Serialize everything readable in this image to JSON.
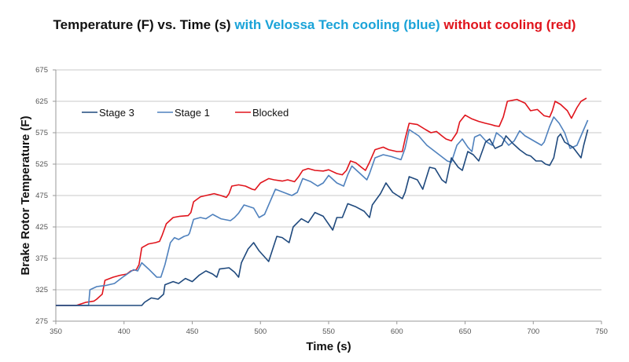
{
  "chart_data": {
    "type": "line",
    "title_parts": [
      {
        "text": "Temperature (F)  vs. Time (s) ",
        "color": "#111111"
      },
      {
        "text": "with Velossa Tech cooling (blue) ",
        "color": "#1aa3d8"
      },
      {
        "text": "without cooling (red)",
        "color": "#e0141c"
      }
    ],
    "xlabel": "Time (s)",
    "ylabel": "Brake Rotor Temperature (F)",
    "xlim": [
      350,
      750
    ],
    "ylim": [
      275,
      675
    ],
    "xticks": [
      350,
      400,
      450,
      500,
      550,
      600,
      650,
      700,
      750
    ],
    "yticks": [
      275,
      325,
      375,
      425,
      475,
      525,
      575,
      625,
      675
    ],
    "grid": "horizontal",
    "legend_position": "top-left",
    "series": [
      {
        "name": "Stage 3",
        "color": "#1f497d",
        "points": [
          [
            350,
            300
          ],
          [
            413,
            300
          ],
          [
            415,
            305
          ],
          [
            420,
            312
          ],
          [
            425,
            310
          ],
          [
            429,
            318
          ],
          [
            430,
            333
          ],
          [
            436,
            338
          ],
          [
            440,
            335
          ],
          [
            445,
            343
          ],
          [
            450,
            338
          ],
          [
            455,
            348
          ],
          [
            460,
            355
          ],
          [
            465,
            350
          ],
          [
            468,
            345
          ],
          [
            470,
            358
          ],
          [
            477,
            360
          ],
          [
            481,
            353
          ],
          [
            484,
            345
          ],
          [
            486,
            368
          ],
          [
            491,
            390
          ],
          [
            495,
            400
          ],
          [
            499,
            387
          ],
          [
            506,
            370
          ],
          [
            509,
            390
          ],
          [
            512,
            410
          ],
          [
            516,
            408
          ],
          [
            521,
            400
          ],
          [
            524,
            425
          ],
          [
            530,
            438
          ],
          [
            535,
            432
          ],
          [
            540,
            448
          ],
          [
            546,
            442
          ],
          [
            553,
            420
          ],
          [
            556,
            440
          ],
          [
            560,
            440
          ],
          [
            564,
            462
          ],
          [
            570,
            457
          ],
          [
            576,
            450
          ],
          [
            580,
            440
          ],
          [
            582,
            460
          ],
          [
            588,
            478
          ],
          [
            592,
            495
          ],
          [
            597,
            480
          ],
          [
            604,
            470
          ],
          [
            606,
            480
          ],
          [
            609,
            505
          ],
          [
            615,
            500
          ],
          [
            619,
            485
          ],
          [
            624,
            520
          ],
          [
            628,
            518
          ],
          [
            633,
            500
          ],
          [
            636,
            495
          ],
          [
            640,
            535
          ],
          [
            645,
            520
          ],
          [
            648,
            515
          ],
          [
            652,
            545
          ],
          [
            656,
            540
          ],
          [
            660,
            530
          ],
          [
            665,
            560
          ],
          [
            668,
            565
          ],
          [
            672,
            550
          ],
          [
            677,
            555
          ],
          [
            680,
            570
          ],
          [
            685,
            558
          ],
          [
            690,
            548
          ],
          [
            695,
            540
          ],
          [
            698,
            538
          ],
          [
            702,
            530
          ],
          [
            706,
            530
          ],
          [
            709,
            525
          ],
          [
            712,
            523
          ],
          [
            715,
            535
          ],
          [
            718,
            568
          ],
          [
            720,
            573
          ],
          [
            723,
            560
          ],
          [
            729,
            552
          ],
          [
            735,
            535
          ],
          [
            737,
            555
          ],
          [
            740,
            580
          ]
        ]
      },
      {
        "name": "Stage 1",
        "color": "#4f81bd",
        "points": [
          [
            350,
            300
          ],
          [
            374,
            300
          ],
          [
            375,
            325
          ],
          [
            380,
            330
          ],
          [
            387,
            332
          ],
          [
            393,
            335
          ],
          [
            399,
            345
          ],
          [
            407,
            357
          ],
          [
            410,
            355
          ],
          [
            413,
            368
          ],
          [
            418,
            358
          ],
          [
            424,
            345
          ],
          [
            427,
            345
          ],
          [
            430,
            365
          ],
          [
            434,
            400
          ],
          [
            437,
            408
          ],
          [
            440,
            405
          ],
          [
            444,
            410
          ],
          [
            447,
            412
          ],
          [
            448,
            415
          ],
          [
            451,
            437
          ],
          [
            456,
            440
          ],
          [
            460,
            438
          ],
          [
            465,
            445
          ],
          [
            471,
            438
          ],
          [
            478,
            435
          ],
          [
            481,
            440
          ],
          [
            484,
            447
          ],
          [
            488,
            460
          ],
          [
            495,
            455
          ],
          [
            499,
            440
          ],
          [
            503,
            445
          ],
          [
            508,
            470
          ],
          [
            511,
            485
          ],
          [
            517,
            480
          ],
          [
            523,
            475
          ],
          [
            527,
            480
          ],
          [
            531,
            502
          ],
          [
            537,
            497
          ],
          [
            542,
            490
          ],
          [
            546,
            495
          ],
          [
            550,
            507
          ],
          [
            556,
            495
          ],
          [
            561,
            490
          ],
          [
            564,
            508
          ],
          [
            567,
            522
          ],
          [
            572,
            512
          ],
          [
            578,
            500
          ],
          [
            580,
            510
          ],
          [
            584,
            535
          ],
          [
            590,
            540
          ],
          [
            596,
            537
          ],
          [
            603,
            532
          ],
          [
            606,
            550
          ],
          [
            609,
            580
          ],
          [
            616,
            570
          ],
          [
            622,
            555
          ],
          [
            628,
            545
          ],
          [
            634,
            535
          ],
          [
            637,
            530
          ],
          [
            640,
            528
          ],
          [
            644,
            555
          ],
          [
            648,
            565
          ],
          [
            652,
            552
          ],
          [
            655,
            545
          ],
          [
            657,
            568
          ],
          [
            661,
            572
          ],
          [
            666,
            560
          ],
          [
            670,
            555
          ],
          [
            673,
            575
          ],
          [
            677,
            568
          ],
          [
            682,
            555
          ],
          [
            686,
            562
          ],
          [
            690,
            578
          ],
          [
            694,
            570
          ],
          [
            698,
            565
          ],
          [
            702,
            560
          ],
          [
            706,
            555
          ],
          [
            708,
            560
          ],
          [
            712,
            585
          ],
          [
            715,
            600
          ],
          [
            719,
            590
          ],
          [
            723,
            575
          ],
          [
            727,
            550
          ],
          [
            732,
            555
          ],
          [
            737,
            580
          ],
          [
            740,
            595
          ]
        ]
      },
      {
        "name": "Blocked",
        "color": "#e0141c",
        "points": [
          [
            350,
            300
          ],
          [
            365,
            300
          ],
          [
            372,
            305
          ],
          [
            378,
            307
          ],
          [
            380,
            310
          ],
          [
            384,
            318
          ],
          [
            386,
            340
          ],
          [
            392,
            345
          ],
          [
            397,
            348
          ],
          [
            402,
            350
          ],
          [
            405,
            355
          ],
          [
            409,
            357
          ],
          [
            411,
            365
          ],
          [
            413,
            392
          ],
          [
            418,
            398
          ],
          [
            423,
            400
          ],
          [
            426,
            402
          ],
          [
            428,
            412
          ],
          [
            431,
            430
          ],
          [
            436,
            440
          ],
          [
            441,
            442
          ],
          [
            447,
            443
          ],
          [
            449,
            448
          ],
          [
            451,
            465
          ],
          [
            456,
            473
          ],
          [
            460,
            475
          ],
          [
            466,
            478
          ],
          [
            471,
            475
          ],
          [
            475,
            472
          ],
          [
            477,
            478
          ],
          [
            479,
            490
          ],
          [
            484,
            492
          ],
          [
            489,
            490
          ],
          [
            494,
            485
          ],
          [
            496,
            484
          ],
          [
            500,
            495
          ],
          [
            506,
            502
          ],
          [
            510,
            500
          ],
          [
            516,
            498
          ],
          [
            520,
            500
          ],
          [
            525,
            497
          ],
          [
            528,
            505
          ],
          [
            531,
            515
          ],
          [
            535,
            518
          ],
          [
            540,
            515
          ],
          [
            546,
            514
          ],
          [
            550,
            516
          ],
          [
            556,
            510
          ],
          [
            560,
            508
          ],
          [
            563,
            515
          ],
          [
            566,
            530
          ],
          [
            570,
            527
          ],
          [
            574,
            520
          ],
          [
            577,
            515
          ],
          [
            580,
            528
          ],
          [
            584,
            548
          ],
          [
            590,
            552
          ],
          [
            594,
            548
          ],
          [
            600,
            545
          ],
          [
            604,
            545
          ],
          [
            606,
            565
          ],
          [
            609,
            590
          ],
          [
            615,
            588
          ],
          [
            621,
            580
          ],
          [
            625,
            575
          ],
          [
            629,
            577
          ],
          [
            633,
            570
          ],
          [
            636,
            565
          ],
          [
            640,
            562
          ],
          [
            644,
            575
          ],
          [
            646,
            592
          ],
          [
            650,
            603
          ],
          [
            655,
            597
          ],
          [
            660,
            593
          ],
          [
            665,
            590
          ],
          [
            669,
            588
          ],
          [
            672,
            586
          ],
          [
            675,
            585
          ],
          [
            678,
            600
          ],
          [
            681,
            625
          ],
          [
            688,
            628
          ],
          [
            694,
            622
          ],
          [
            698,
            610
          ],
          [
            703,
            612
          ],
          [
            708,
            602
          ],
          [
            712,
            600
          ],
          [
            714,
            610
          ],
          [
            716,
            625
          ],
          [
            720,
            620
          ],
          [
            725,
            610
          ],
          [
            728,
            598
          ],
          [
            732,
            615
          ],
          [
            735,
            625
          ],
          [
            739,
            630
          ]
        ]
      }
    ]
  }
}
